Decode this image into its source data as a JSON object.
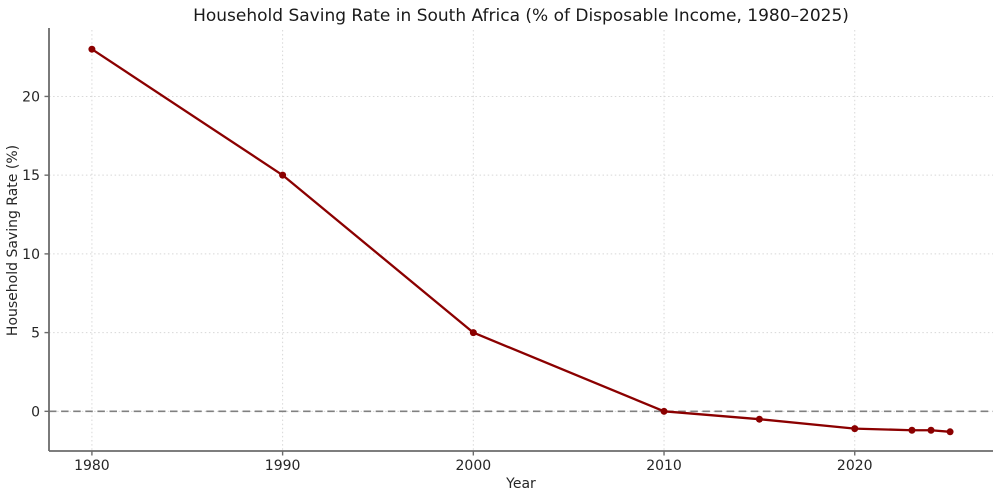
{
  "chart_data": {
    "type": "line",
    "title": "Household Saving Rate in South Africa (% of Disposable Income, 1980–2025)",
    "xlabel": "Year",
    "ylabel": "Household Saving Rate (%)",
    "x": [
      1980,
      1990,
      2000,
      2010,
      2015,
      2020,
      2023,
      2024,
      2025
    ],
    "y": [
      23,
      15,
      5,
      0,
      -0.5,
      -1.1,
      -1.2,
      -1.2,
      -1.3
    ],
    "xticks": [
      1980,
      1990,
      2000,
      2010,
      2020
    ],
    "yticks": [
      0,
      5,
      10,
      15,
      20
    ],
    "xlim": [
      1977.75,
      2027.25
    ],
    "ylim": [
      -2.52,
      24.22
    ],
    "grid": true,
    "grid_style": "dotted",
    "zero_line": {
      "y": 0,
      "style": "dashed"
    },
    "legend": false,
    "marker": "circle",
    "colors": {
      "series": "#8b0000",
      "zero_line": "#808080",
      "gridline": "#d8d8d8",
      "spine": "#6b6b6b",
      "background": "#ffffff"
    }
  }
}
